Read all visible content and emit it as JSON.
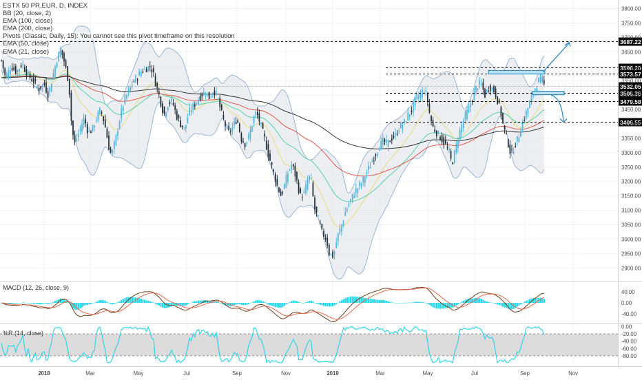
{
  "chart_data": {
    "type": "candlestick",
    "symbol_title": "ESTX 50 PR.EUR, D, INDEX",
    "legend": [
      "BB (20, close, 2)",
      "EMA (100, close)",
      "EMA (200, close)",
      "Pivots (Classic, Daily, 15): You cannot see this pivot timeframe on this resolution",
      "EMA (50, close)",
      "EMA (21, close)"
    ],
    "x_ticks": [
      "2018",
      "Mar",
      "May",
      "Jul",
      "Sep",
      "Nov",
      "2019",
      "Mar",
      "May",
      "Jul",
      "Sep",
      "Nov"
    ],
    "x_tick_x": [
      64,
      131,
      201,
      271,
      344,
      415,
      483,
      552,
      621,
      689,
      762,
      832
    ],
    "price_axis": {
      "range": [
        2860,
        3830
      ],
      "ticks": [
        3800,
        3750,
        3700,
        3650,
        3600,
        3550,
        3500,
        3450,
        3400,
        3350,
        3300,
        3250,
        3200,
        3150,
        3100,
        3050,
        3000,
        2950,
        2900
      ],
      "tick_labels": [
        "3800.00",
        "3750.00",
        "3700.00",
        "3650.00",
        "3600.00",
        "3550.00",
        "3500.00",
        "3450.00",
        "3400.00",
        "3350.00",
        "3300.00",
        "3250.00",
        "3200.00",
        "3150.00",
        "3100.00",
        "3050.00",
        "3000.00",
        "2950.00",
        "2900.00"
      ]
    },
    "price_labels": [
      {
        "label": "3687.22",
        "value": 3687.22,
        "dashed": true
      },
      {
        "label": "3596.20",
        "value": 3596.2,
        "dashed": true
      },
      {
        "label": "3573.57",
        "value": 3573.57,
        "dashed": true
      },
      {
        "label": "3532.05",
        "value": 3532.05,
        "dashed": false
      },
      {
        "label": "3506.36",
        "value": 3506.36,
        "dashed": true
      },
      {
        "label": "3479.58",
        "value": 3479.58,
        "dashed": true
      },
      {
        "label": "3406.55",
        "value": 3406.55,
        "dashed": true
      }
    ],
    "close_path": [
      [
        0,
        3640
      ],
      [
        8,
        3560
      ],
      [
        16,
        3600
      ],
      [
        24,
        3580
      ],
      [
        32,
        3610
      ],
      [
        40,
        3570
      ],
      [
        48,
        3550
      ],
      [
        56,
        3520
      ],
      [
        64,
        3540
      ],
      [
        70,
        3500
      ],
      [
        76,
        3560
      ],
      [
        82,
        3620
      ],
      [
        88,
        3660
      ],
      [
        94,
        3610
      ],
      [
        100,
        3540
      ],
      [
        104,
        3390
      ],
      [
        108,
        3330
      ],
      [
        116,
        3380
      ],
      [
        122,
        3420
      ],
      [
        128,
        3370
      ],
      [
        134,
        3380
      ],
      [
        140,
        3420
      ],
      [
        146,
        3450
      ],
      [
        152,
        3400
      ],
      [
        158,
        3320
      ],
      [
        162,
        3290
      ],
      [
        168,
        3350
      ],
      [
        174,
        3420
      ],
      [
        180,
        3480
      ],
      [
        186,
        3510
      ],
      [
        192,
        3540
      ],
      [
        198,
        3560
      ],
      [
        204,
        3580
      ],
      [
        210,
        3590
      ],
      [
        218,
        3600
      ],
      [
        222,
        3580
      ],
      [
        226,
        3540
      ],
      [
        232,
        3490
      ],
      [
        238,
        3430
      ],
      [
        244,
        3470
      ],
      [
        250,
        3480
      ],
      [
        256,
        3430
      ],
      [
        262,
        3400
      ],
      [
        268,
        3380
      ],
      [
        274,
        3440
      ],
      [
        280,
        3460
      ],
      [
        286,
        3480
      ],
      [
        292,
        3500
      ],
      [
        298,
        3510
      ],
      [
        304,
        3490
      ],
      [
        310,
        3520
      ],
      [
        316,
        3490
      ],
      [
        320,
        3450
      ],
      [
        326,
        3400
      ],
      [
        332,
        3370
      ],
      [
        338,
        3390
      ],
      [
        344,
        3420
      ],
      [
        350,
        3350
      ],
      [
        356,
        3330
      ],
      [
        362,
        3360
      ],
      [
        368,
        3420
      ],
      [
        372,
        3440
      ],
      [
        378,
        3400
      ],
      [
        384,
        3350
      ],
      [
        390,
        3290
      ],
      [
        396,
        3240
      ],
      [
        402,
        3190
      ],
      [
        408,
        3150
      ],
      [
        412,
        3180
      ],
      [
        418,
        3230
      ],
      [
        424,
        3260
      ],
      [
        430,
        3210
      ],
      [
        436,
        3150
      ],
      [
        442,
        3160
      ],
      [
        448,
        3220
      ],
      [
        452,
        3200
      ],
      [
        456,
        3110
      ],
      [
        462,
        3070
      ],
      [
        468,
        3020
      ],
      [
        474,
        3000
      ],
      [
        478,
        2950
      ],
      [
        484,
        2940
      ],
      [
        490,
        3010
      ],
      [
        496,
        3050
      ],
      [
        502,
        3100
      ],
      [
        508,
        3130
      ],
      [
        514,
        3160
      ],
      [
        520,
        3180
      ],
      [
        526,
        3200
      ],
      [
        532,
        3230
      ],
      [
        538,
        3260
      ],
      [
        544,
        3290
      ],
      [
        550,
        3320
      ],
      [
        556,
        3340
      ],
      [
        562,
        3330
      ],
      [
        568,
        3350
      ],
      [
        574,
        3360
      ],
      [
        580,
        3390
      ],
      [
        586,
        3400
      ],
      [
        592,
        3430
      ],
      [
        598,
        3450
      ],
      [
        604,
        3490
      ],
      [
        610,
        3500
      ],
      [
        616,
        3520
      ],
      [
        620,
        3490
      ],
      [
        624,
        3430
      ],
      [
        628,
        3390
      ],
      [
        634,
        3370
      ],
      [
        640,
        3350
      ],
      [
        646,
        3330
      ],
      [
        652,
        3300
      ],
      [
        656,
        3260
      ],
      [
        662,
        3320
      ],
      [
        668,
        3380
      ],
      [
        674,
        3420
      ],
      [
        680,
        3450
      ],
      [
        686,
        3490
      ],
      [
        692,
        3530
      ],
      [
        698,
        3540
      ],
      [
        704,
        3500
      ],
      [
        710,
        3530
      ],
      [
        716,
        3520
      ],
      [
        720,
        3500
      ],
      [
        726,
        3450
      ],
      [
        732,
        3380
      ],
      [
        738,
        3330
      ],
      [
        742,
        3290
      ],
      [
        746,
        3320
      ],
      [
        752,
        3350
      ],
      [
        758,
        3400
      ],
      [
        764,
        3440
      ],
      [
        770,
        3480
      ],
      [
        776,
        3520
      ],
      [
        782,
        3550
      ],
      [
        786,
        3560
      ],
      [
        790,
        3532
      ]
    ],
    "macd_axis": {
      "range": [
        -70,
        75
      ],
      "ticks": [
        40,
        0,
        -40
      ],
      "tick_labels": [
        "40.00",
        "0.00",
        "-40.00"
      ]
    },
    "williams_r_axis": {
      "range": [
        -105,
        5
      ],
      "ticks": [
        0,
        -20,
        -40,
        -60,
        -80
      ],
      "tick_labels": [
        "0.00",
        "-20.00",
        "-40.00",
        "-60.00",
        "-80.00"
      ],
      "band": [
        -20,
        -80
      ]
    },
    "panes": [
      {
        "name": "MACD (12, 26, close, 9)"
      },
      {
        "name": "%R (14, close)"
      }
    ],
    "colors": {
      "up": "#52b8e0",
      "down": "#26323a",
      "bb_band": "#9ab6d6",
      "bb_fill": "#dfe3e8",
      "ema21": "#e8dc7c",
      "ema50": "#53d3a7",
      "ema100": "#e0554c",
      "ema200": "#333333",
      "arrow": "#2f8bbd",
      "macd_hist": "#28d7e8",
      "macd_line": "#6b3f1c",
      "signal_line": "#e7674c",
      "williams": "#2fd4e6",
      "williams_band": "#dcdcdc"
    }
  }
}
